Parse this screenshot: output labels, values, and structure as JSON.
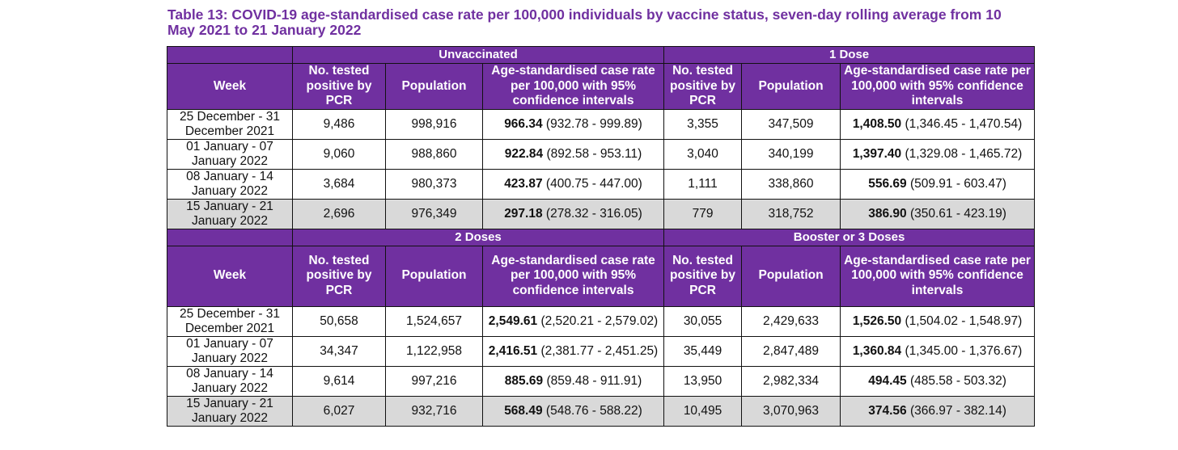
{
  "title": "Table 13: COVID-19 age-standardised case rate per 100,000 individuals by vaccine status, seven-day rolling average from 10 May 2021 to 21 January 2022",
  "columns": {
    "week": "Week",
    "tested": "No. tested positive by PCR",
    "population": "Population",
    "rate": "Age-standardised case rate per 100,000 with 95% confidence intervals"
  },
  "sections": [
    {
      "groups": [
        "Unvaccinated",
        "1 Dose"
      ],
      "rows": [
        {
          "week": "25 December - 31 December 2021",
          "shaded": false,
          "a": {
            "tested": "9,486",
            "population": "998,916",
            "rate": "966.34",
            "ci": "(932.78 - 999.89)"
          },
          "b": {
            "tested": "3,355",
            "population": "347,509",
            "rate": "1,408.50",
            "ci": "(1,346.45 - 1,470.54)"
          }
        },
        {
          "week": "01 January - 07 January 2022",
          "shaded": false,
          "a": {
            "tested": "9,060",
            "population": "988,860",
            "rate": "922.84",
            "ci": "(892.58 - 953.11)"
          },
          "b": {
            "tested": "3,040",
            "population": "340,199",
            "rate": "1,397.40",
            "ci": "(1,329.08 - 1,465.72)"
          }
        },
        {
          "week": "08 January - 14 January 2022",
          "shaded": false,
          "a": {
            "tested": "3,684",
            "population": "980,373",
            "rate": "423.87",
            "ci": "(400.75 - 447.00)"
          },
          "b": {
            "tested": "1,111",
            "population": "338,860",
            "rate": "556.69",
            "ci": "(509.91 - 603.47)"
          }
        },
        {
          "week": "15 January - 21 January 2022",
          "shaded": true,
          "a": {
            "tested": "2,696",
            "population": "976,349",
            "rate": "297.18",
            "ci": "(278.32 - 316.05)"
          },
          "b": {
            "tested": "779",
            "population": "318,752",
            "rate": "386.90",
            "ci": "(350.61 - 423.19)"
          }
        }
      ]
    },
    {
      "groups": [
        "2 Doses",
        "Booster or 3 Doses"
      ],
      "rows": [
        {
          "week": "25 December - 31 December 2021",
          "shaded": false,
          "a": {
            "tested": "50,658",
            "population": "1,524,657",
            "rate": "2,549.61",
            "ci": "(2,520.21 - 2,579.02)"
          },
          "b": {
            "tested": "30,055",
            "population": "2,429,633",
            "rate": "1,526.50",
            "ci": "(1,504.02 - 1,548.97)"
          }
        },
        {
          "week": "01 January - 07 January 2022",
          "shaded": false,
          "a": {
            "tested": "34,347",
            "population": "1,122,958",
            "rate": "2,416.51",
            "ci": "(2,381.77 - 2,451.25)"
          },
          "b": {
            "tested": "35,449",
            "population": "2,847,489",
            "rate": "1,360.84",
            "ci": "(1,345.00 - 1,376.67)"
          }
        },
        {
          "week": "08 January - 14 January 2022",
          "shaded": false,
          "a": {
            "tested": "9,614",
            "population": "997,216",
            "rate": "885.69",
            "ci": "(859.48 - 911.91)"
          },
          "b": {
            "tested": "13,950",
            "population": "2,982,334",
            "rate": "494.45",
            "ci": "(485.58 - 503.32)"
          }
        },
        {
          "week": "15 January - 21 January 2022",
          "shaded": true,
          "a": {
            "tested": "6,027",
            "population": "932,716",
            "rate": "568.49",
            "ci": "(548.76 - 588.22)"
          },
          "b": {
            "tested": "10,495",
            "population": "3,070,963",
            "rate": "374.56",
            "ci": "(366.97 - 382.14)"
          }
        }
      ]
    }
  ],
  "colors": {
    "header_purple": "#7030a0",
    "title_purple": "#7030a0",
    "shaded_row": "#d9d9d9"
  }
}
